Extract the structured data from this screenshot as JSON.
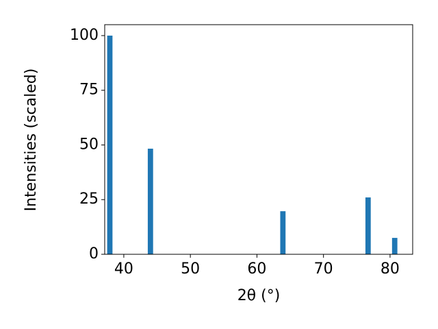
{
  "chart_data": {
    "type": "bar",
    "x": [
      37.9,
      44.0,
      63.9,
      76.7,
      80.7
    ],
    "values": [
      100,
      48.3,
      19.7,
      26.0,
      7.5
    ],
    "color": "#1f77b4",
    "xlabel": "2θ (°)",
    "ylabel": "Intensities (scaled)",
    "xlim": [
      37.13,
      83.4
    ],
    "xticks": [
      40,
      50,
      60,
      70,
      80
    ],
    "ylim": [
      0,
      105
    ],
    "yticks": [
      0,
      25,
      50,
      75,
      100
    ],
    "grid": false
  }
}
